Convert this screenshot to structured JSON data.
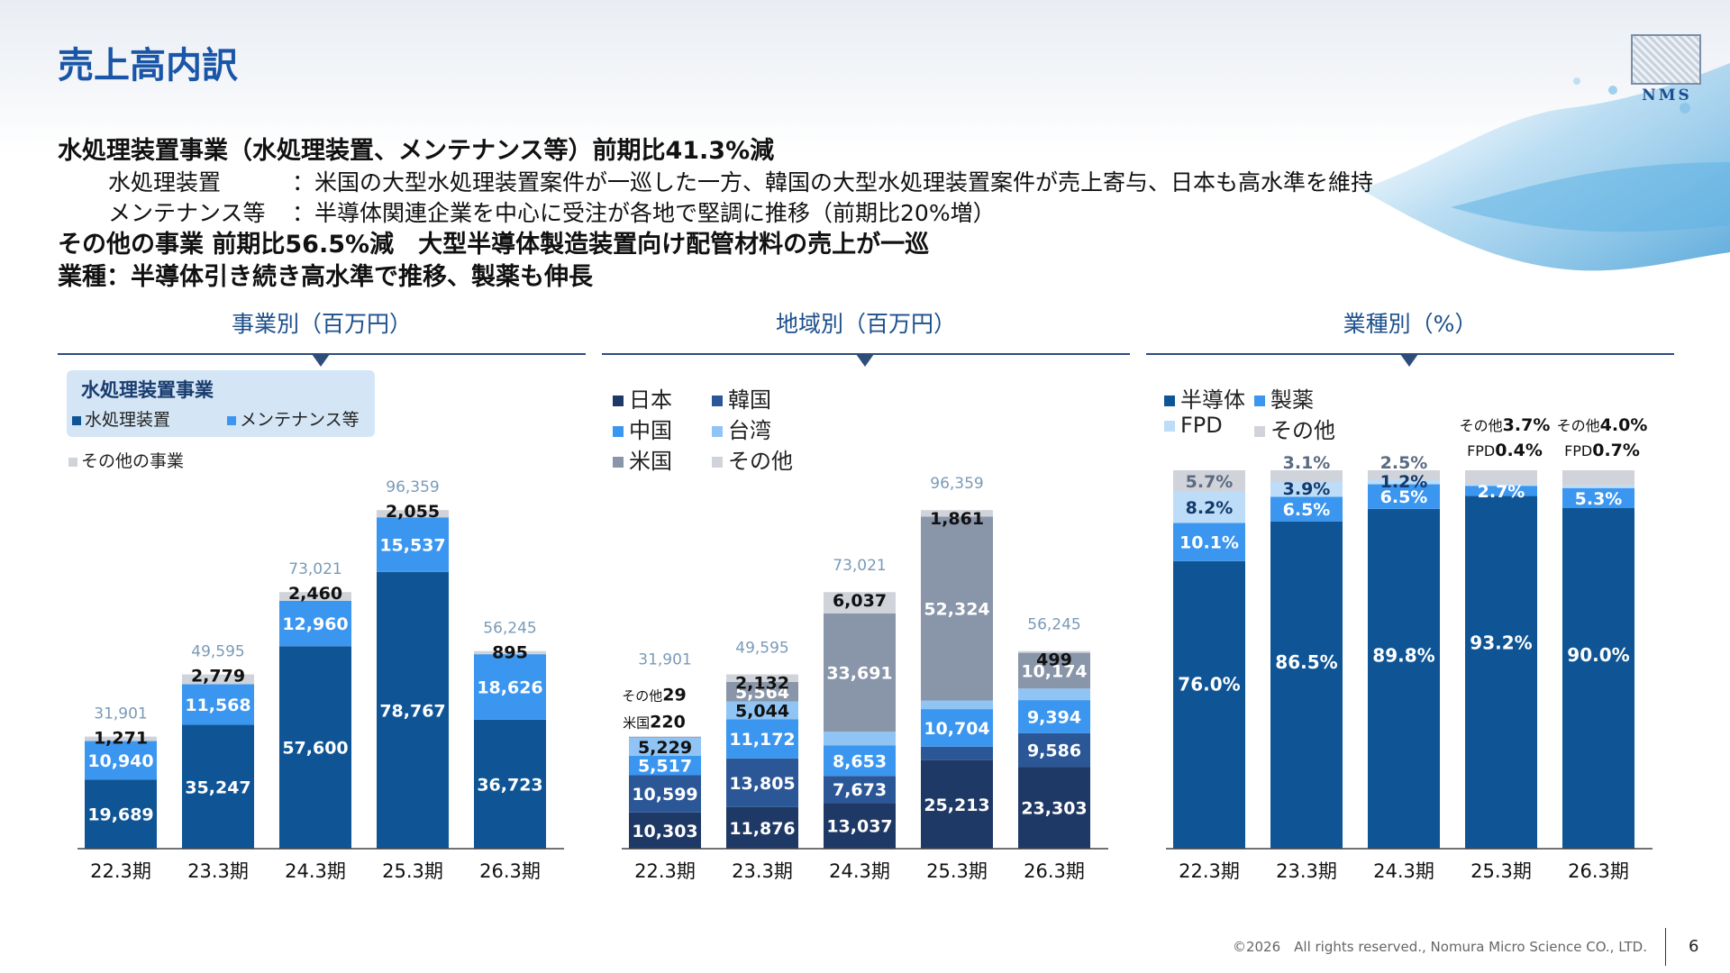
{
  "title": "売上高内訳",
  "summary": {
    "line1": "水処理装置事業（水処理装置、メンテナンス等）前期比41.3%減",
    "line2_key": "水処理装置",
    "line2_val": "：米国の大型水処理装置案件が一巡した一方、韓国の大型水処理装置案件が売上寄与、日本も高水準を維持",
    "line3_key": "メンテナンス等",
    "line3_val": "：半導体関連企業を中心に受注が各地で堅調に推移（前期比20%増）",
    "line4": "その他の事業 前期比56.5%減　大型半導体製造装置向け配管材料の売上が一巡",
    "line5": "業種：半導体引き続き高水準で推移、製薬も伸長"
  },
  "logo": {
    "text": "NMS"
  },
  "footer": {
    "copyright": "©2026　All rights reserved., Nomura Micro Science CO., LTD.",
    "page": "6"
  },
  "colors": {
    "navy": "#1f3966",
    "blue": "#0f5596",
    "mid": "#2b5797",
    "light": "#3b96f0",
    "pale": "#8fc4f5",
    "gray": "#8995a8",
    "lightgray": "#d0d3da"
  },
  "chart_data": [
    {
      "type": "bar",
      "stacked": true,
      "title": "事業別（百万円）",
      "categories": [
        "22.3期",
        "23.3期",
        "24.3期",
        "25.3期",
        "26.3期"
      ],
      "legend_group": "水処理装置事業",
      "series": [
        {
          "name": "水処理装置",
          "values": [
            19689,
            35247,
            57600,
            78767,
            36723
          ],
          "labels": [
            "19,689",
            "35,247",
            "57,600",
            "78,767",
            "36,723"
          ],
          "color": "#0f5596"
        },
        {
          "name": "メンテナンス等",
          "values": [
            10940,
            11568,
            12960,
            15537,
            18626
          ],
          "labels": [
            "10,940",
            "11,568",
            "12,960",
            "15,537",
            "18,626"
          ],
          "color": "#3b96f0"
        },
        {
          "name": "その他の事業",
          "values": [
            1271,
            2779,
            2460,
            2055,
            895
          ],
          "labels": [
            "1,271",
            "2,779",
            "2,460",
            "2,055",
            "895"
          ],
          "color": "#d0d3da"
        }
      ],
      "totals": [
        "31,901",
        "49,595",
        "73,021",
        "96,359",
        "56,245"
      ],
      "ylim": [
        0,
        100000
      ]
    },
    {
      "type": "bar",
      "stacked": true,
      "title": "地域別（百万円）",
      "categories": [
        "22.3期",
        "23.3期",
        "24.3期",
        "25.3期",
        "26.3期"
      ],
      "series": [
        {
          "name": "日本",
          "values": [
            10303,
            11876,
            13037,
            25213,
            23303
          ],
          "labels": [
            "10,303",
            "11,876",
            "13,037",
            "25,213",
            "23,303"
          ],
          "color": "#1f3966"
        },
        {
          "name": "韓国",
          "values": [
            10599,
            13805,
            7673,
            3804,
            9586
          ],
          "labels": [
            "10,599",
            "13,805",
            "7,673",
            "3,804",
            "9,586"
          ],
          "color": "#2b5797"
        },
        {
          "name": "中国",
          "values": [
            5517,
            11172,
            8653,
            10704,
            9394
          ],
          "labels": [
            "5,517",
            "11,172",
            "8,653",
            "10,704",
            "9,394"
          ],
          "color": "#3b96f0"
        },
        {
          "name": "台湾",
          "values": [
            5229,
            5044,
            3927,
            2450,
            3287
          ],
          "labels": [
            "5,229",
            "5,044",
            "3,927",
            "2,450",
            "3,287"
          ],
          "color": "#8fc4f5"
        },
        {
          "name": "米国",
          "values": [
            220,
            5564,
            33691,
            52324,
            10174
          ],
          "labels": [
            "220",
            "5,564",
            "33,691",
            "52,324",
            "10,174"
          ],
          "color": "#8995a8"
        },
        {
          "name": "その他",
          "values": [
            29,
            2132,
            6037,
            1861,
            499
          ],
          "labels": [
            "29",
            "2,132",
            "6,037",
            "1,861",
            "499"
          ],
          "color": "#d0d3da"
        }
      ],
      "outside_labels": {
        "us_prefix": "米国",
        "other_prefix": "その他"
      },
      "totals": [
        "31,901",
        "49,595",
        "73,021",
        "96,359",
        "56,245"
      ],
      "ylim": [
        0,
        100000
      ]
    },
    {
      "type": "bar",
      "stacked": true,
      "title": "業種別（%）",
      "categories": [
        "22.3期",
        "23.3期",
        "24.3期",
        "25.3期",
        "26.3期"
      ],
      "series": [
        {
          "name": "半導体",
          "values": [
            76.0,
            86.5,
            89.8,
            93.2,
            90.0
          ],
          "labels": [
            "76.0%",
            "86.5%",
            "89.8%",
            "93.2%",
            "90.0%"
          ],
          "color": "#0f5596"
        },
        {
          "name": "製薬",
          "values": [
            10.1,
            6.5,
            6.5,
            2.7,
            5.3
          ],
          "labels": [
            "10.1%",
            "6.5%",
            "6.5%",
            "2.7%",
            "5.3%"
          ],
          "color": "#3b96f0"
        },
        {
          "name": "FPD",
          "values": [
            8.2,
            3.9,
            1.2,
            0.4,
            0.7
          ],
          "labels": [
            "8.2%",
            "3.9%",
            "1.2%",
            "0.4%",
            "0.7%"
          ],
          "color": "#bcdcf8"
        },
        {
          "name": "その他",
          "values": [
            5.7,
            3.1,
            2.5,
            3.7,
            4.0
          ],
          "labels": [
            "5.7%",
            "3.1%",
            "2.5%",
            "3.7%",
            "4.0%"
          ],
          "color": "#d0d3da"
        }
      ],
      "outside_labels": {
        "fpd_prefix": "FPD",
        "other_prefix": "その他"
      },
      "ylim": [
        0,
        100
      ]
    }
  ]
}
